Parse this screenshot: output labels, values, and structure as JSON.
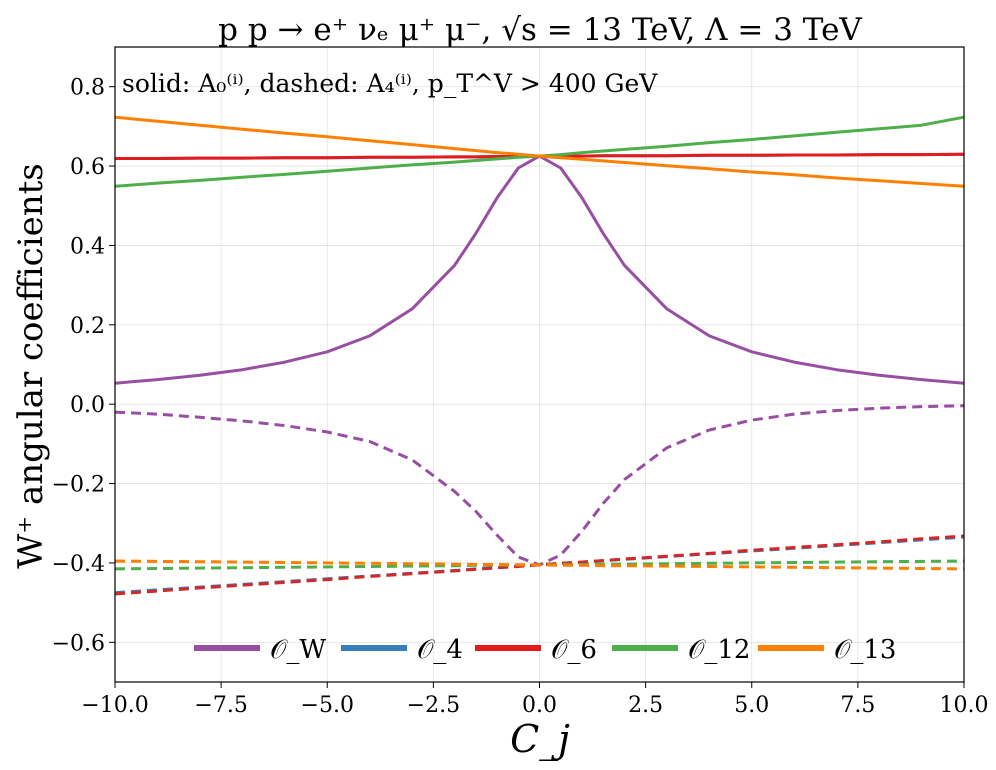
{
  "chart_data": {
    "type": "line",
    "title": "p p → e⁺ νₑ μ⁺ μ⁻, √s = 13 TeV, Λ = 3 TeV",
    "annotation": "solid: A₀⁽ⁱ⁾, dashed: A₄⁽ⁱ⁾, p_T^V > 400 GeV",
    "xlabel": "C_j",
    "ylabel": "W⁺ angular coefficients",
    "xlim": [
      -10,
      10
    ],
    "ylim": [
      -0.7,
      0.9
    ],
    "xticks": [
      "−10.0",
      "−7.5",
      "−5.0",
      "−2.5",
      "0.0",
      "2.5",
      "5.0",
      "7.5",
      "10.0"
    ],
    "yticks": [
      "−0.6",
      "−0.4",
      "−0.2",
      "0.0",
      "0.2",
      "0.4",
      "0.6",
      "0.8"
    ],
    "grid": true,
    "legend_position": "bottom-center",
    "x": [
      -10,
      -9,
      -8,
      -7,
      -6,
      -5,
      -4,
      -3,
      -2,
      -1.5,
      -1,
      -0.5,
      0,
      0.5,
      1,
      1.5,
      2,
      3,
      4,
      5,
      6,
      7,
      8,
      9,
      10
    ],
    "series": [
      {
        "name": "𝒪_W",
        "label": "A0",
        "style": "solid",
        "color": "#984ea3",
        "values": [
          0.053,
          0.062,
          0.073,
          0.087,
          0.106,
          0.132,
          0.172,
          0.24,
          0.35,
          0.43,
          0.52,
          0.595,
          0.625,
          0.595,
          0.52,
          0.43,
          0.35,
          0.24,
          0.172,
          0.132,
          0.106,
          0.087,
          0.073,
          0.062,
          0.053
        ]
      },
      {
        "name": "",
        "label": "A4",
        "style": "dashed",
        "color": "#984ea3",
        "values": [
          -0.02,
          -0.025,
          -0.033,
          -0.042,
          -0.054,
          -0.07,
          -0.094,
          -0.14,
          -0.22,
          -0.27,
          -0.33,
          -0.385,
          -0.405,
          -0.38,
          -0.32,
          -0.25,
          -0.19,
          -0.11,
          -0.065,
          -0.04,
          -0.025,
          -0.016,
          -0.01,
          -0.006,
          -0.004
        ]
      },
      {
        "name": "𝒪_4",
        "label": "A0",
        "style": "solid",
        "color": "#377eb8",
        "values": [
          0.619,
          0.619,
          0.62,
          0.62,
          0.621,
          0.621,
          0.622,
          0.622,
          0.623,
          0.623,
          0.624,
          0.624,
          0.625,
          0.625,
          0.625,
          0.626,
          0.626,
          0.626,
          0.627,
          0.627,
          0.628,
          0.628,
          0.629,
          0.629,
          0.63
        ]
      },
      {
        "name": "",
        "label": "A4",
        "style": "dashed",
        "color": "#377eb8",
        "values": [
          -0.475,
          -0.468,
          -0.461,
          -0.454,
          -0.447,
          -0.44,
          -0.433,
          -0.426,
          -0.419,
          -0.415,
          -0.412,
          -0.408,
          -0.405,
          -0.401,
          -0.398,
          -0.394,
          -0.391,
          -0.384,
          -0.377,
          -0.37,
          -0.363,
          -0.356,
          -0.349,
          -0.342,
          -0.335
        ]
      },
      {
        "name": "𝒪_6",
        "label": "A0",
        "style": "solid",
        "color": "#e41a1c",
        "values": [
          0.619,
          0.619,
          0.62,
          0.62,
          0.621,
          0.621,
          0.622,
          0.622,
          0.623,
          0.623,
          0.624,
          0.624,
          0.625,
          0.625,
          0.625,
          0.626,
          0.626,
          0.626,
          0.627,
          0.627,
          0.628,
          0.628,
          0.629,
          0.629,
          0.63
        ]
      },
      {
        "name": "",
        "label": "A4",
        "style": "dashed",
        "color": "#d62728",
        "values": [
          -0.478,
          -0.471,
          -0.463,
          -0.456,
          -0.449,
          -0.442,
          -0.434,
          -0.427,
          -0.42,
          -0.416,
          -0.412,
          -0.409,
          -0.405,
          -0.401,
          -0.398,
          -0.394,
          -0.39,
          -0.383,
          -0.376,
          -0.368,
          -0.361,
          -0.354,
          -0.347,
          -0.339,
          -0.332
        ]
      },
      {
        "name": "𝒪_12",
        "label": "A0",
        "style": "solid",
        "color": "#4daf4a",
        "values": [
          0.549,
          0.557,
          0.564,
          0.572,
          0.579,
          0.587,
          0.595,
          0.603,
          0.61,
          0.614,
          0.618,
          0.622,
          0.625,
          0.629,
          0.634,
          0.638,
          0.642,
          0.65,
          0.659,
          0.667,
          0.676,
          0.685,
          0.694,
          0.703,
          0.723
        ]
      },
      {
        "name": "",
        "label": "A4",
        "style": "dashed",
        "color": "#4daf4a",
        "values": [
          -0.415,
          -0.414,
          -0.413,
          -0.412,
          -0.411,
          -0.41,
          -0.409,
          -0.408,
          -0.407,
          -0.406,
          -0.406,
          -0.405,
          -0.405,
          -0.404,
          -0.404,
          -0.403,
          -0.403,
          -0.402,
          -0.401,
          -0.4,
          -0.399,
          -0.398,
          -0.397,
          -0.396,
          -0.395
        ]
      },
      {
        "name": "𝒪_13",
        "label": "A0",
        "style": "solid",
        "color": "#ff7f00",
        "values": [
          0.723,
          0.713,
          0.703,
          0.693,
          0.683,
          0.674,
          0.664,
          0.654,
          0.644,
          0.639,
          0.634,
          0.63,
          0.625,
          0.621,
          0.617,
          0.613,
          0.609,
          0.601,
          0.593,
          0.585,
          0.578,
          0.57,
          0.563,
          0.556,
          0.549
        ]
      },
      {
        "name": "",
        "label": "A4",
        "style": "dashed",
        "color": "#ff7f00",
        "values": [
          -0.395,
          -0.396,
          -0.397,
          -0.398,
          -0.399,
          -0.4,
          -0.401,
          -0.402,
          -0.403,
          -0.404,
          -0.404,
          -0.405,
          -0.405,
          -0.406,
          -0.406,
          -0.407,
          -0.407,
          -0.408,
          -0.409,
          -0.41,
          -0.411,
          -0.412,
          -0.413,
          -0.414,
          -0.415
        ]
      }
    ],
    "legend": [
      {
        "label": "𝒪_W",
        "color": "#984ea3"
      },
      {
        "label": "𝒪_4",
        "color": "#377eb8"
      },
      {
        "label": "𝒪_6",
        "color": "#e41a1c"
      },
      {
        "label": "𝒪_12",
        "color": "#4daf4a"
      },
      {
        "label": "𝒪_13",
        "color": "#ff7f00"
      }
    ]
  }
}
